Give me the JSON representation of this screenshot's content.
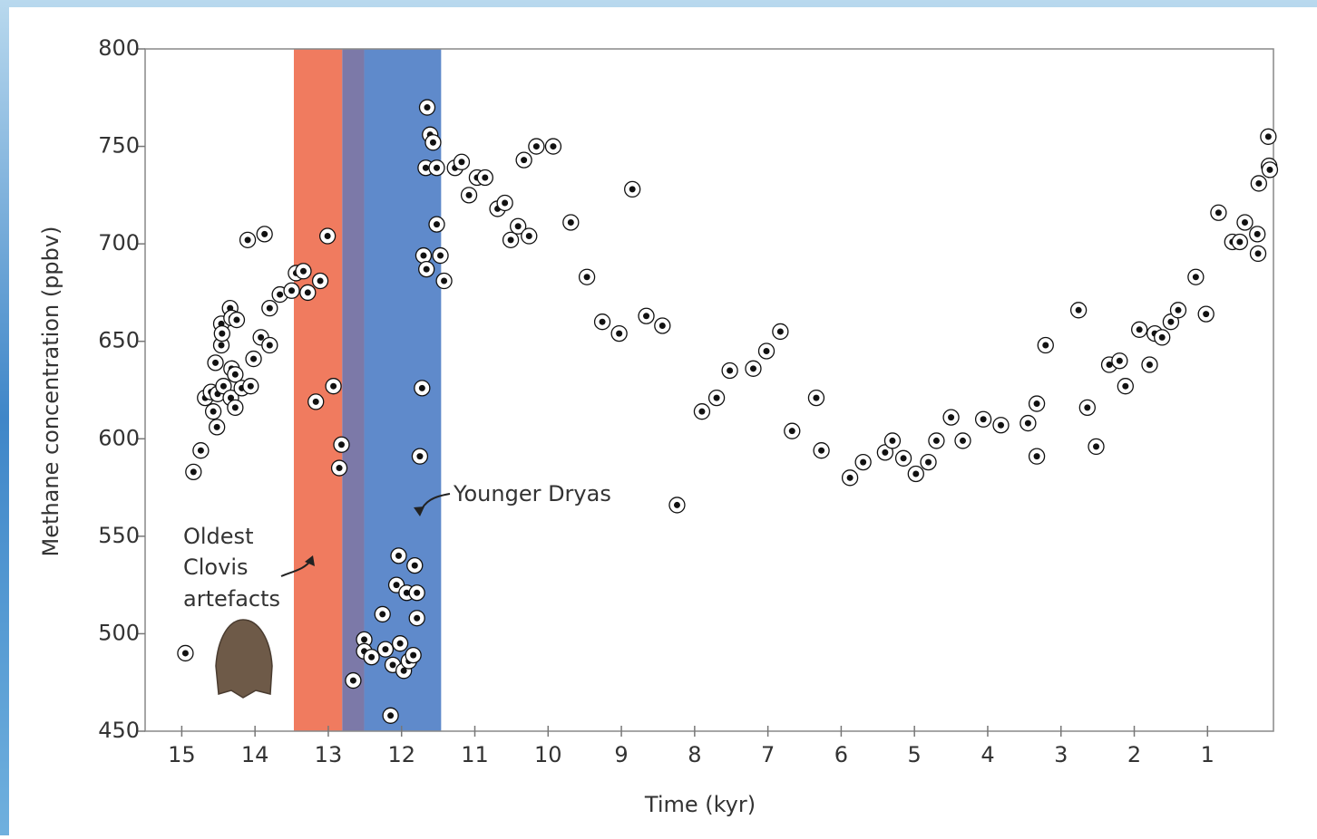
{
  "chart_data": {
    "type": "scatter",
    "x_label": "Time (kyr)",
    "y_label": "Methane concentration (ppbv)",
    "xlim": [
      15.5,
      0.1
    ],
    "ylim": [
      450,
      800
    ],
    "xticks": [
      15,
      14,
      13,
      12,
      11,
      10,
      9,
      8,
      7,
      6,
      5,
      4,
      3,
      2,
      1
    ],
    "yticks": [
      450,
      500,
      550,
      600,
      650,
      700,
      750,
      800
    ],
    "bands": [
      {
        "from": 13.47,
        "to": 12.81,
        "color": "#f07b5f"
      },
      {
        "from": 12.81,
        "to": 12.51,
        "color": "#7c79a8"
      },
      {
        "from": 12.51,
        "to": 11.46,
        "color": "#5f8acb"
      }
    ],
    "annotations": {
      "younger_dryas": "Younger Dryas",
      "clovis": [
        "Oldest",
        "Clovis",
        "artefacts"
      ]
    },
    "color": "#111111",
    "x": [
      14.95,
      14.84,
      14.74,
      14.68,
      14.6,
      14.57,
      14.52,
      14.54,
      14.51,
      14.46,
      14.46,
      14.45,
      14.43,
      14.34,
      14.32,
      14.25,
      14.32,
      14.27,
      14.33,
      14.27,
      14.18,
      14.06,
      14.02,
      14.1,
      13.87,
      13.92,
      13.8,
      13.8,
      13.66,
      13.5,
      13.44,
      13.34,
      13.28,
      13.11,
      13.01,
      13.17,
      12.93,
      12.82,
      12.85,
      12.66,
      12.51,
      12.51,
      12.41,
      12.26,
      12.22,
      12.15,
      12.12,
      12.02,
      11.97,
      12.04,
      12.07,
      11.93,
      11.9,
      11.84,
      11.82,
      11.79,
      11.79,
      11.75,
      11.72,
      11.65,
      11.61,
      11.57,
      11.67,
      11.52,
      11.7,
      11.66,
      11.52,
      11.47,
      11.42,
      11.27,
      11.18,
      11.08,
      10.97,
      10.86,
      10.69,
      10.59,
      10.51,
      10.41,
      10.26,
      10.33,
      10.16,
      9.93,
      9.69,
      9.47,
      9.26,
      9.03,
      8.85,
      8.66,
      8.44,
      8.24,
      7.9,
      7.7,
      7.52,
      7.2,
      7.02,
      6.83,
      6.67,
      6.34,
      6.27,
      5.88,
      5.7,
      5.4,
      5.3,
      5.15,
      4.98,
      4.81,
      4.7,
      4.5,
      4.34,
      4.06,
      3.82,
      3.45,
      3.33,
      3.33,
      3.21,
      2.76,
      2.64,
      2.52,
      2.34,
      2.2,
      2.12,
      1.93,
      1.79,
      1.72,
      1.62,
      1.5,
      1.4,
      1.16,
      1.02,
      0.85,
      0.66,
      0.56,
      0.49,
      0.32,
      0.31,
      0.3,
      0.17,
      0.16,
      0.15
    ],
    "y": [
      490,
      583,
      594,
      621,
      624,
      614,
      606,
      639,
      623,
      648,
      659,
      654,
      627,
      667,
      662,
      661,
      636,
      633,
      621,
      616,
      626,
      627,
      641,
      702,
      705,
      652,
      648,
      667,
      674,
      676,
      685,
      686,
      675,
      681,
      704,
      619,
      627,
      597,
      585,
      476,
      497,
      491,
      488,
      510,
      492,
      458,
      484,
      495,
      481,
      540,
      525,
      521,
      486,
      489,
      535,
      521,
      508,
      591,
      626,
      770,
      756,
      752,
      739,
      739,
      694,
      687,
      710,
      694,
      681,
      739,
      742,
      725,
      734,
      734,
      718,
      721,
      702,
      709,
      704,
      743,
      750,
      750,
      711,
      683,
      660,
      654,
      728,
      663,
      658,
      566,
      614,
      621,
      635,
      636,
      645,
      655,
      604,
      621,
      594,
      580,
      588,
      593,
      599,
      590,
      582,
      588,
      599,
      611,
      599,
      610,
      607,
      608,
      618,
      591,
      648,
      666,
      616,
      596,
      638,
      640,
      627,
      656,
      638,
      654,
      652,
      660,
      666,
      683,
      664,
      716,
      701,
      701,
      711,
      705,
      695,
      731,
      755,
      740,
      738
    ]
  }
}
